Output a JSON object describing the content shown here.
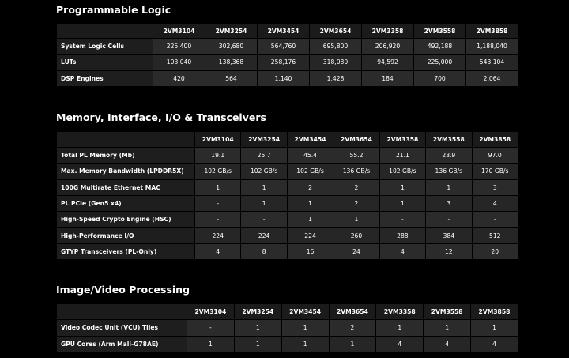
{
  "sections": [
    {
      "title": "Programmable Logic",
      "table": {
        "headers": [
          "2VM3104",
          "2VM3254",
          "2VM3454",
          "2VM3654",
          "2VM3358",
          "2VM3558",
          "2VM3858"
        ],
        "rows": [
          [
            "System Logic Cells",
            "225,400",
            "302,680",
            "564,760",
            "695,800",
            "206,920",
            "492,188",
            "1,188,040"
          ],
          [
            "LUTs",
            "103,040",
            "138,368",
            "258,176",
            "318,080",
            "94,592",
            "225,000",
            "543,104"
          ],
          [
            "DSP Engines",
            "420",
            "564",
            "1,140",
            "1,428",
            "184",
            "700",
            "2,064"
          ]
        ]
      }
    },
    {
      "title": "Memory, Interface, I/O & Transceivers",
      "table": {
        "headers": [
          "2VM3104",
          "2VM3254",
          "2VM3454",
          "2VM3654",
          "2VM3358",
          "2VM3558",
          "2VM3858"
        ],
        "rows": [
          [
            "Total PL Memory (Mb)",
            "19.1",
            "25.7",
            "45.4",
            "55.2",
            "21.1",
            "23.9",
            "97.0"
          ],
          [
            "Max. Memory Bandwidth (LPDDR5X)",
            "102 GB/s",
            "102 GB/s",
            "102 GB/s",
            "136 GB/s",
            "102 GB/s",
            "136 GB/s",
            "170 GB/s"
          ],
          [
            "100G Multirate Ethernet MAC",
            "1",
            "1",
            "2",
            "2",
            "1",
            "1",
            "3"
          ],
          [
            "PL PCIe (Gen5 x4)",
            "-",
            "1",
            "1",
            "2",
            "1",
            "3",
            "4"
          ],
          [
            "High-Speed Crypto Engine (HSC)",
            "-",
            "-",
            "1",
            "1",
            "-",
            "-",
            "-"
          ],
          [
            "High-Performance I/O",
            "224",
            "224",
            "224",
            "260",
            "288",
            "384",
            "512"
          ],
          [
            "GTYP Transceivers (PL-Only)",
            "4",
            "8",
            "16",
            "24",
            "4",
            "12",
            "20"
          ]
        ]
      }
    },
    {
      "title": "Image/Video Processing",
      "table": {
        "headers": [
          "2VM3104",
          "2VM3254",
          "2VM3454",
          "2VM3654",
          "2VM3358",
          "2VM3558",
          "2VM3858"
        ],
        "rows": [
          [
            "Video Codec Unit (VCU) Tiles",
            "-",
            "1",
            "1",
            "2",
            "1",
            "1",
            "1"
          ],
          [
            "GPU Cores (Arm Mali-G78AE)",
            "1",
            "1",
            "1",
            "1",
            "4",
            "4",
            "4"
          ]
        ]
      }
    }
  ]
}
